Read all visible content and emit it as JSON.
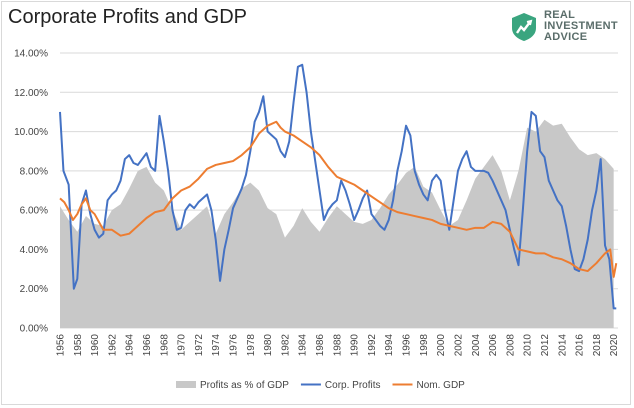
{
  "header": {
    "title": "Corporate Profits and GDP"
  },
  "logo": {
    "line1": "REAL",
    "line2": "INVESTMENT",
    "line3": "ADVICE",
    "color": "#2f9a78"
  },
  "legend": {
    "items": [
      {
        "label": "Profits as % of GDP",
        "kind": "area",
        "color": "#c8c8c8"
      },
      {
        "label": "Corp. Profits",
        "kind": "line",
        "color": "#4472c4"
      },
      {
        "label": "Nom. GDP",
        "kind": "line",
        "color": "#ed7d31"
      }
    ]
  },
  "chart_data": {
    "type": "line",
    "title": "Corporate Profits and GDP",
    "xlabel": "",
    "ylabel": "",
    "xlim": [
      1956,
      2020.5
    ],
    "ylim": [
      0,
      14
    ],
    "y_ticks": [
      "0.00%",
      "2.00%",
      "4.00%",
      "6.00%",
      "8.00%",
      "10.00%",
      "12.00%",
      "14.00%"
    ],
    "x_ticks": [
      "1956",
      "1958",
      "1960",
      "1962",
      "1964",
      "1966",
      "1968",
      "1970",
      "1972",
      "1974",
      "1976",
      "1978",
      "1980",
      "1982",
      "1984",
      "1986",
      "1988",
      "1990",
      "1992",
      "1994",
      "1996",
      "1998",
      "2000",
      "2002",
      "2004",
      "2006",
      "2008",
      "2010",
      "2012",
      "2014",
      "2016",
      "2018",
      "2020"
    ],
    "grid": true,
    "legend_position": "bottom",
    "series": [
      {
        "name": "Profits as % of GDP",
        "kind": "area",
        "color": "#c8c8c8",
        "x": [
          1956,
          1957,
          1958,
          1959,
          1960,
          1961,
          1962,
          1963,
          1964,
          1965,
          1966,
          1967,
          1968,
          1969,
          1970,
          1971,
          1972,
          1973,
          1974,
          1975,
          1976,
          1977,
          1978,
          1979,
          1980,
          1981,
          1982,
          1983,
          1984,
          1985,
          1986,
          1987,
          1988,
          1989,
          1990,
          1991,
          1992,
          1993,
          1994,
          1995,
          1996,
          1997,
          1998,
          1999,
          2000,
          2001,
          2002,
          2003,
          2004,
          2005,
          2006,
          2007,
          2008,
          2009,
          2010,
          2011,
          2012,
          2013,
          2014,
          2015,
          2016,
          2017,
          2018,
          2019,
          2020
        ],
        "values": [
          6.2,
          5.5,
          4.9,
          5.7,
          5.3,
          5.2,
          6.0,
          6.3,
          7.1,
          8.0,
          8.2,
          7.4,
          7.0,
          6.0,
          5.0,
          5.4,
          5.8,
          6.2,
          4.8,
          5.8,
          6.4,
          7.1,
          7.4,
          7.0,
          6.1,
          5.8,
          4.6,
          5.2,
          6.1,
          5.4,
          4.9,
          5.6,
          6.2,
          5.8,
          5.4,
          5.3,
          5.5,
          6.1,
          6.8,
          7.3,
          7.9,
          8.2,
          7.2,
          6.9,
          6.0,
          5.2,
          5.5,
          6.5,
          7.6,
          8.2,
          8.8,
          8.0,
          6.5,
          8.0,
          10.2,
          10.0,
          10.6,
          10.3,
          10.4,
          9.7,
          9.1,
          8.8,
          8.9,
          8.6,
          8.1
        ]
      },
      {
        "name": "Corp. Profits",
        "kind": "line",
        "color": "#4472c4",
        "x": [
          1956,
          1956.4,
          1957,
          1957.6,
          1958,
          1958.5,
          1959,
          1959.5,
          1960,
          1960.5,
          1961,
          1961.5,
          1962,
          1962.5,
          1963,
          1963.5,
          1964,
          1964.5,
          1965,
          1965.5,
          1966,
          1966.5,
          1967,
          1967.5,
          1968,
          1968.5,
          1969,
          1969.5,
          1970,
          1970.5,
          1971,
          1971.5,
          1972,
          1972.5,
          1973,
          1973.5,
          1974,
          1974.5,
          1975,
          1975.5,
          1976,
          1976.5,
          1977,
          1977.5,
          1978,
          1978.5,
          1979,
          1979.5,
          1980,
          1980.5,
          1981,
          1981.5,
          1982,
          1982.5,
          1983,
          1983.5,
          1984,
          1984.5,
          1985,
          1985.5,
          1986,
          1986.5,
          1987,
          1987.5,
          1988,
          1988.5,
          1989,
          1989.5,
          1990,
          1990.5,
          1991,
          1991.5,
          1992,
          1992.5,
          1993,
          1993.5,
          1994,
          1994.5,
          1995,
          1995.5,
          1996,
          1996.5,
          1997,
          1997.5,
          1998,
          1998.5,
          1999,
          1999.5,
          2000,
          2000.5,
          2001,
          2001.5,
          2002,
          2002.5,
          2003,
          2003.5,
          2004,
          2004.5,
          2005,
          2005.5,
          2006,
          2006.5,
          2007,
          2007.5,
          2008,
          2008.5,
          2009,
          2009.5,
          2010,
          2010.5,
          2011,
          2011.5,
          2012,
          2012.5,
          2013,
          2013.5,
          2014,
          2014.5,
          2015,
          2015.5,
          2016,
          2016.5,
          2017,
          2017.5,
          2018,
          2018.5,
          2019,
          2019.5,
          2020,
          2020.3
        ],
        "values": [
          11.0,
          8.0,
          7.3,
          2.0,
          2.5,
          6.3,
          7.0,
          5.8,
          5.0,
          4.6,
          4.8,
          6.5,
          6.8,
          7.0,
          7.5,
          8.6,
          8.8,
          8.4,
          8.3,
          8.6,
          8.9,
          8.2,
          8.0,
          10.8,
          9.5,
          8.0,
          6.0,
          5.0,
          5.1,
          6.0,
          6.3,
          6.1,
          6.4,
          6.6,
          6.8,
          6.0,
          4.5,
          2.4,
          4.0,
          5.0,
          6.1,
          6.6,
          7.1,
          7.8,
          9.0,
          10.5,
          11.0,
          11.8,
          10.0,
          9.8,
          9.6,
          9.0,
          8.7,
          9.5,
          11.5,
          13.3,
          13.4,
          12.0,
          10.0,
          8.5,
          7.0,
          5.5,
          6.0,
          6.3,
          6.5,
          7.5,
          7.0,
          6.3,
          5.5,
          6.0,
          6.6,
          7.0,
          5.8,
          5.5,
          5.2,
          5.0,
          5.5,
          6.5,
          8.0,
          9.0,
          10.3,
          9.8,
          8.0,
          7.3,
          6.8,
          6.5,
          7.5,
          7.8,
          7.5,
          6.0,
          5.0,
          6.5,
          8.0,
          8.6,
          9.0,
          8.2,
          8.0,
          8.0,
          8.0,
          7.9,
          7.5,
          7.0,
          6.5,
          6.0,
          5.0,
          4.0,
          3.2,
          6.0,
          9.0,
          11.0,
          10.8,
          9.0,
          8.7,
          7.5,
          7.0,
          6.5,
          6.2,
          5.2,
          4.0,
          3.0,
          2.9,
          3.5,
          4.5,
          6.0,
          7.0,
          8.6,
          4.2,
          3.5,
          1.0,
          1.0
        ]
      },
      {
        "name": "Nom. GDP",
        "kind": "line",
        "color": "#ed7d31",
        "x": [
          1956,
          1956.5,
          1957,
          1957.5,
          1958,
          1958.5,
          1959,
          1959.5,
          1960,
          1961,
          1962,
          1963,
          1964,
          1965,
          1966,
          1967,
          1968,
          1969,
          1970,
          1971,
          1972,
          1973,
          1974,
          1975,
          1976,
          1977,
          1978,
          1979,
          1980,
          1981,
          1981.5,
          1982,
          1983,
          1984,
          1985,
          1986,
          1987,
          1988,
          1989,
          1990,
          1991,
          1992,
          1993,
          1994,
          1995,
          1996,
          1997,
          1998,
          1999,
          2000,
          2001,
          2002,
          2003,
          2004,
          2005,
          2006,
          2007,
          2008,
          2009,
          2010,
          2011,
          2012,
          2013,
          2014,
          2015,
          2016,
          2017,
          2018,
          2019,
          2019.6,
          2020,
          2020.3
        ],
        "values": [
          6.6,
          6.4,
          6.0,
          5.5,
          5.8,
          6.3,
          6.6,
          6.0,
          5.8,
          5.0,
          5.0,
          4.7,
          4.8,
          5.2,
          5.6,
          5.9,
          6.0,
          6.6,
          7.0,
          7.2,
          7.6,
          8.1,
          8.3,
          8.4,
          8.5,
          8.8,
          9.2,
          9.9,
          10.3,
          10.5,
          10.2,
          10.0,
          9.8,
          9.5,
          9.2,
          8.8,
          8.2,
          7.7,
          7.5,
          7.3,
          7.0,
          6.7,
          6.4,
          6.1,
          5.9,
          5.8,
          5.7,
          5.6,
          5.5,
          5.3,
          5.2,
          5.1,
          5.0,
          5.1,
          5.1,
          5.4,
          5.3,
          4.9,
          4.0,
          3.9,
          3.8,
          3.8,
          3.6,
          3.5,
          3.3,
          3.0,
          2.9,
          3.3,
          3.8,
          4.0,
          2.6,
          3.3
        ]
      }
    ]
  }
}
